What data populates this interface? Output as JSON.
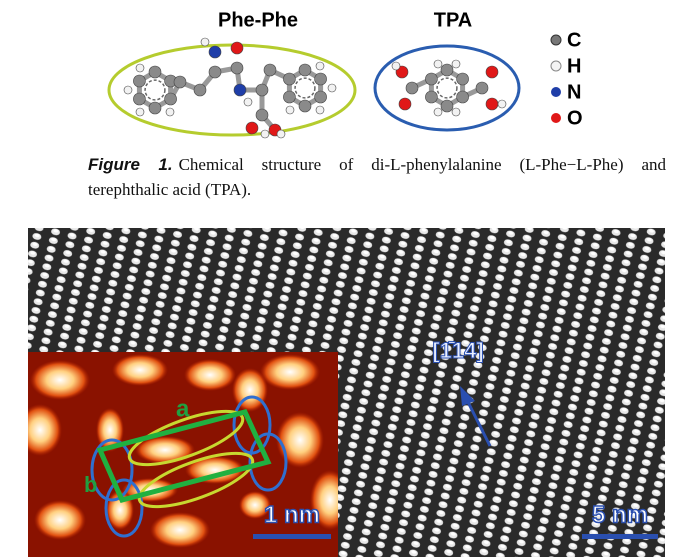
{
  "header": {
    "molecules": [
      {
        "label": "Phe-Phe"
      },
      {
        "label": "TPA"
      }
    ],
    "legend": [
      "C",
      "H",
      "N",
      "O"
    ]
  },
  "caption": {
    "label": "Figure 1.",
    "text": "Chemical structure of di-L-phenylalanine (L-Phe−L-Phe) and terephthalic acid (TPA)."
  },
  "image": {
    "direction": "[1̄14]",
    "inset_labels": [
      "a",
      "b"
    ],
    "scale_bars": [
      "1 nm",
      "5 nm"
    ]
  }
}
